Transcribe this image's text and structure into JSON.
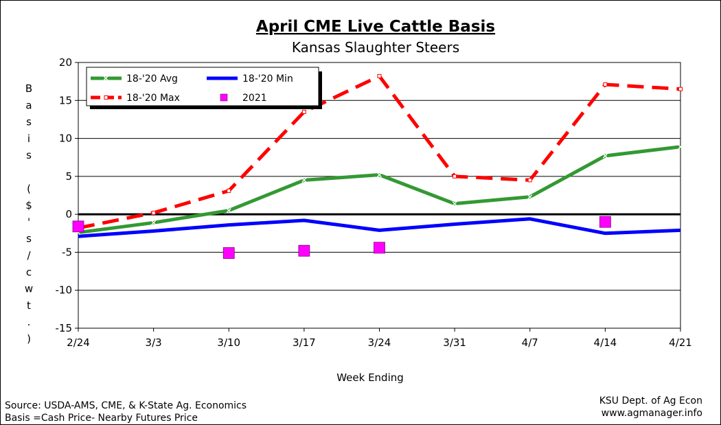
{
  "chart_data": {
    "type": "line",
    "title": "April CME Live Cattle Basis",
    "subtitle": "Kansas Slaughter Steers",
    "xlabel": "Week Ending",
    "ylabel": "Basis ($'s/cwt.)",
    "ylim": [
      -15,
      20
    ],
    "yticks": [
      -15,
      -10,
      -5,
      0,
      5,
      10,
      15,
      20
    ],
    "grid": true,
    "legend_position": "top-left",
    "categories": [
      "2/24",
      "3/3",
      "3/10",
      "3/17",
      "3/24",
      "3/31",
      "4/7",
      "4/14",
      "4/21"
    ],
    "series": [
      {
        "name": "18-'20 Avg",
        "color": "#339933",
        "style": "solid-x",
        "values": [
          -2.4,
          -1.1,
          0.5,
          4.5,
          5.2,
          1.4,
          2.3,
          7.7,
          8.9
        ]
      },
      {
        "name": "18-'20 Min",
        "color": "#0000ff",
        "style": "solid",
        "values": [
          -2.9,
          -2.2,
          -1.4,
          -0.8,
          -2.1,
          -1.3,
          -0.6,
          -2.5,
          -2.1
        ]
      },
      {
        "name": "18-'20 Max",
        "color": "#ff0000",
        "style": "dashed",
        "values": [
          -1.8,
          0.2,
          3.1,
          13.5,
          18.2,
          5.0,
          4.5,
          17.1,
          16.5
        ]
      },
      {
        "name": "2021",
        "color": "#ff00ff",
        "style": "marker",
        "values": [
          -1.6,
          null,
          -5.1,
          -4.8,
          -4.4,
          null,
          null,
          -1.0,
          null
        ]
      }
    ]
  },
  "footer": {
    "source": "Source:  USDA-AMS, CME, & K-State Ag. Economics",
    "basis_note": "Basis =Cash Price- Nearby Futures Price",
    "org": "KSU Dept. of Ag Econ",
    "url": "www.agmanager.info"
  }
}
